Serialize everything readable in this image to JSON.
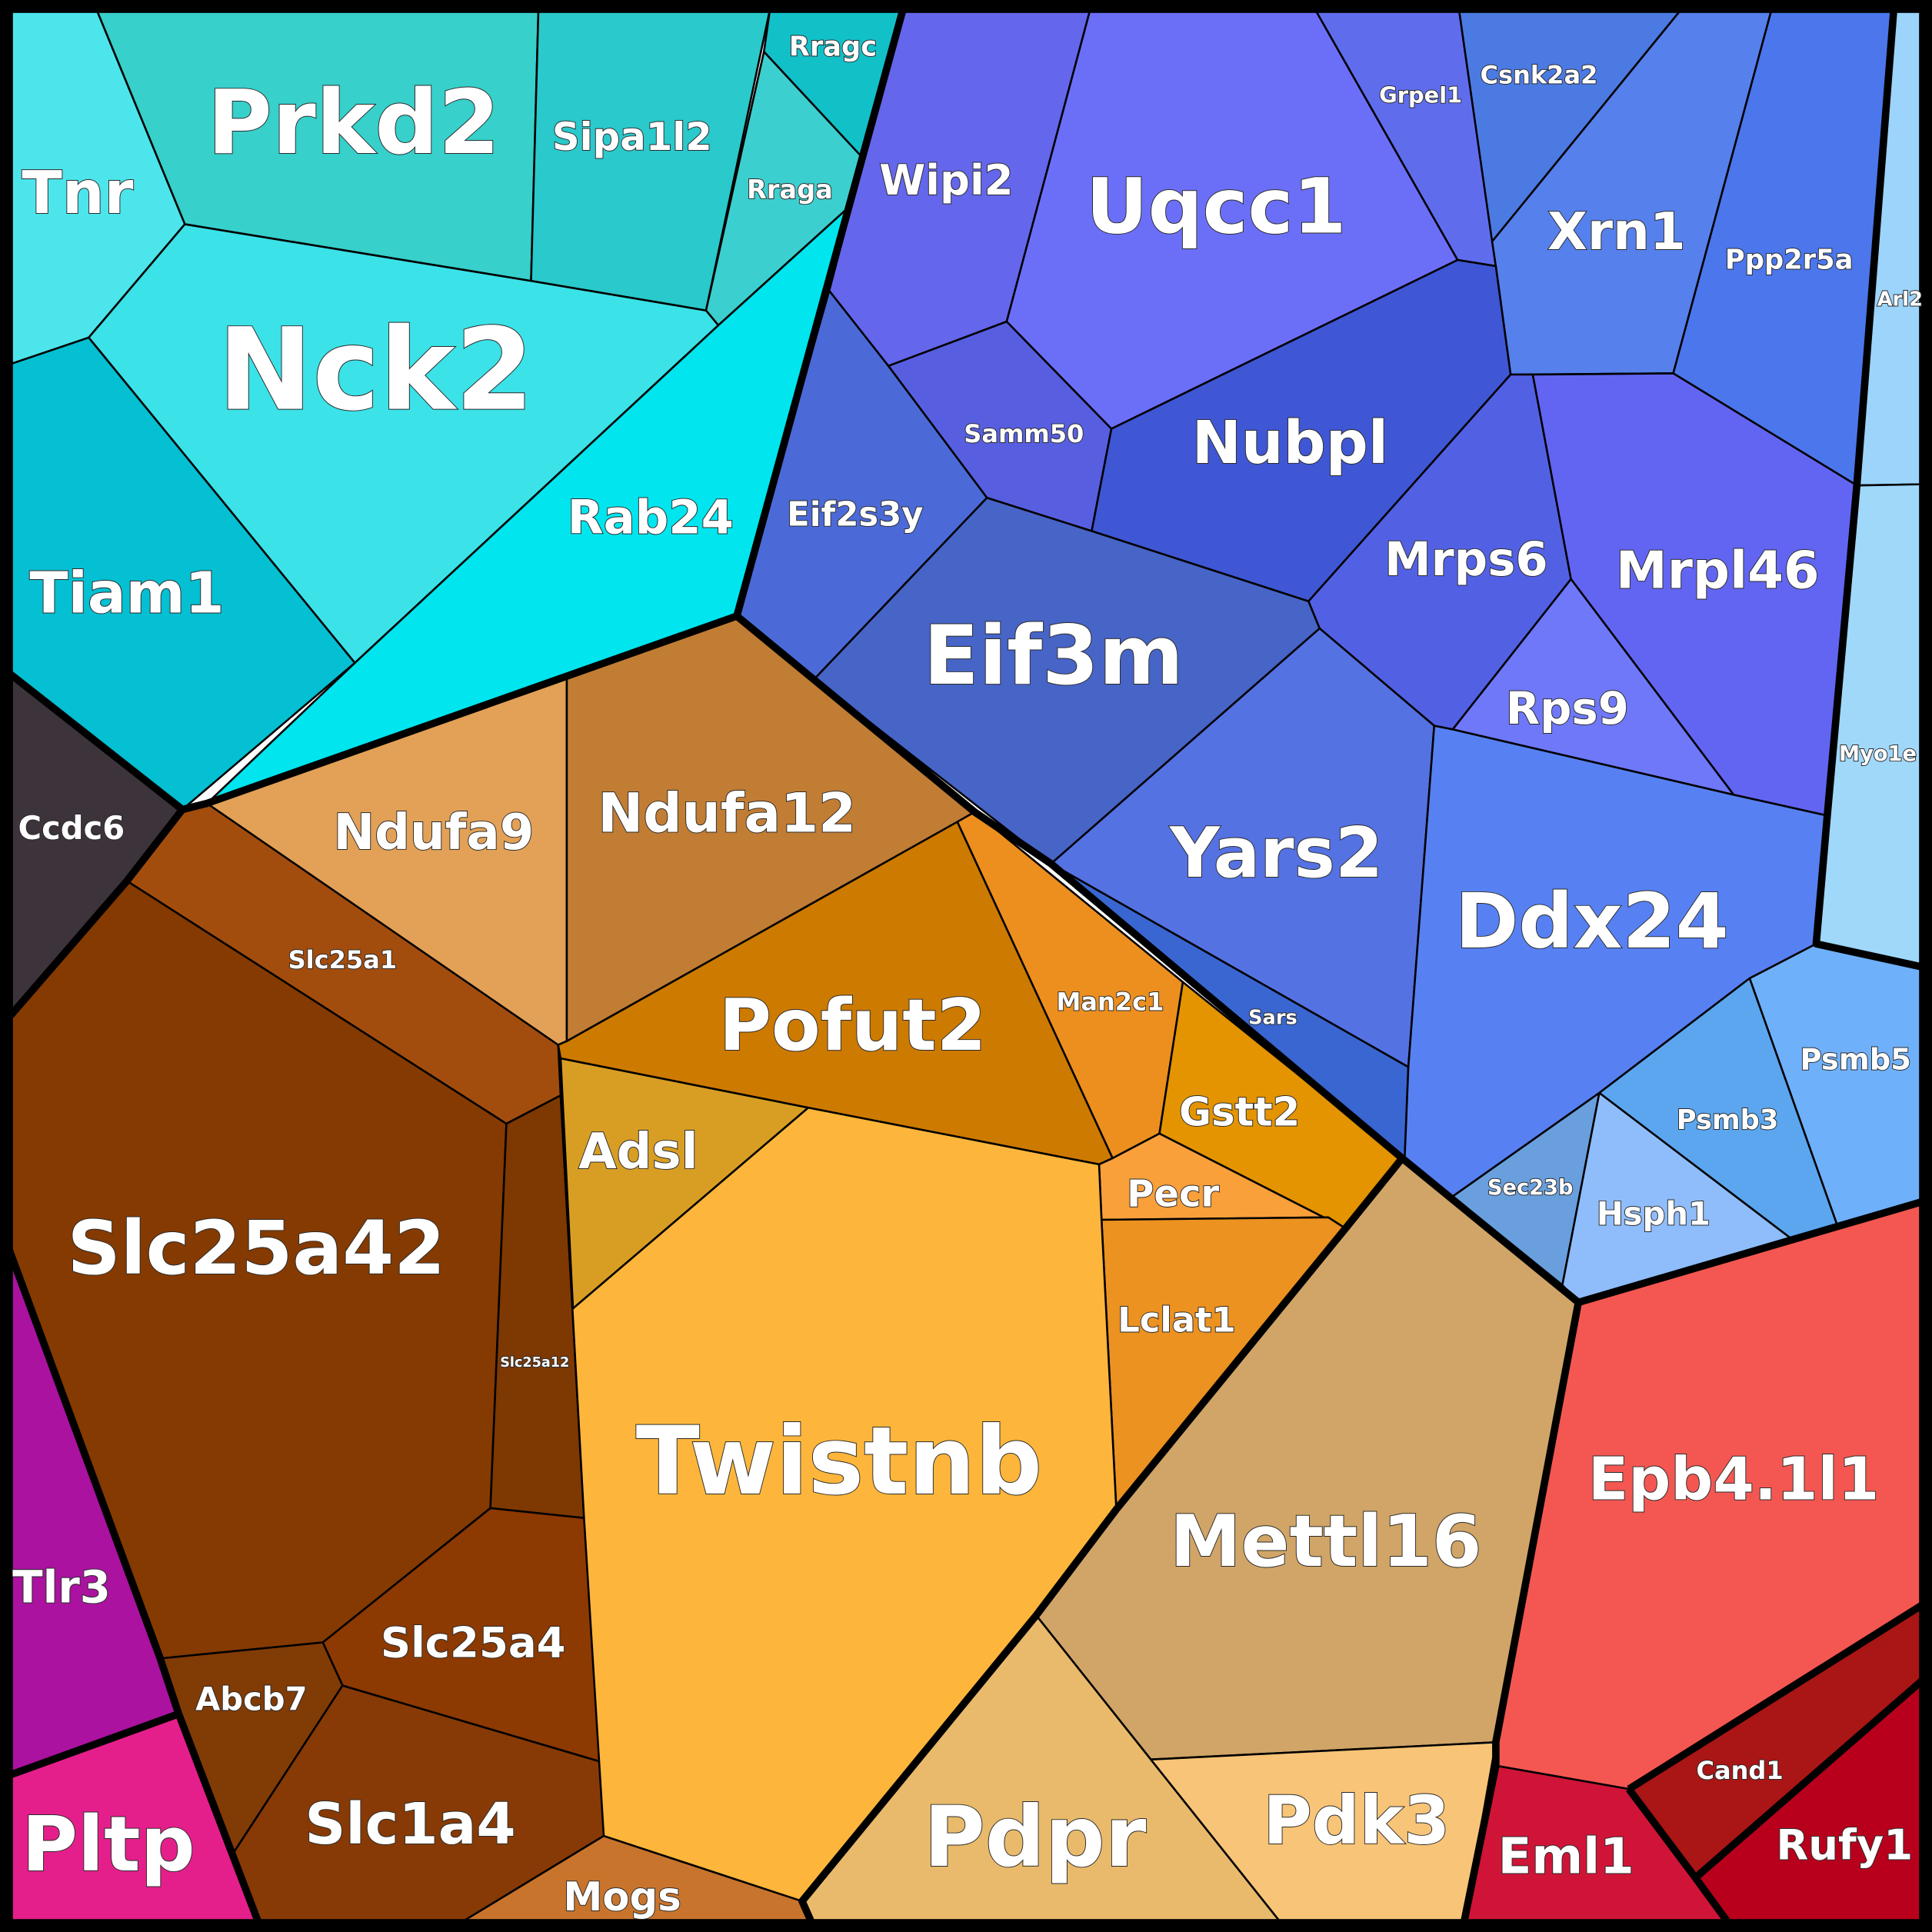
{
  "chart_data": {
    "type": "voronoi-treemap",
    "cells": [
      {
        "label": "Prkd2",
        "color": "#37d0cb"
      },
      {
        "label": "Sipa1l2",
        "color": "#2ac9cb"
      },
      {
        "label": "Rragc",
        "color": "#12c0c8"
      },
      {
        "label": "Rraga",
        "color": "#3ccfd0"
      },
      {
        "label": "Tnr",
        "color": "#4de5ec"
      },
      {
        "label": "Nck2",
        "color": "#3be2e8"
      },
      {
        "label": "Tiam1",
        "color": "#05bfd2"
      },
      {
        "label": "Rab24",
        "color": "#00e5ee"
      },
      {
        "label": "Ccdc6",
        "color": "#3c333b"
      },
      {
        "label": "Wipi2",
        "color": "#6466ec"
      },
      {
        "label": "Uqcc1",
        "color": "#6b6ff8"
      },
      {
        "label": "Grpel1",
        "color": "#5f6ded"
      },
      {
        "label": "Csnk2a2",
        "color": "#4c7ae3"
      },
      {
        "label": "Xrn1",
        "color": "#5680ec"
      },
      {
        "label": "Ppp2r5a",
        "color": "#4b76ec"
      },
      {
        "label": "Samm50",
        "color": "#575fe0"
      },
      {
        "label": "Nubpl",
        "color": "#3f57d4"
      },
      {
        "label": "Eif2s3y",
        "color": "#4b6ad8"
      },
      {
        "label": "Eif3m",
        "color": "#4764c7"
      },
      {
        "label": "Mrps6",
        "color": "#5261e4"
      },
      {
        "label": "Mrpl46",
        "color": "#6265f2"
      },
      {
        "label": "Rps9",
        "color": "#6e78f9"
      },
      {
        "label": "Yars2",
        "color": "#5572e3"
      },
      {
        "label": "Sars",
        "color": "#3a66d2"
      },
      {
        "label": "Ddx24",
        "color": "#5781f2"
      },
      {
        "label": "Arl2",
        "color": "#9cd4fb"
      },
      {
        "label": "Myo1e",
        "color": "#a0d8fa"
      },
      {
        "label": "Psmb5",
        "color": "#6fb0fb"
      },
      {
        "label": "Psmb3",
        "color": "#5ba6ef"
      },
      {
        "label": "Sec23b",
        "color": "#699fdd"
      },
      {
        "label": "Hsph1",
        "color": "#8fbdfb"
      },
      {
        "label": "Ndufa9",
        "color": "#e2a157"
      },
      {
        "label": "Ndufa12",
        "color": "#c17d34"
      },
      {
        "label": "Slc25a1",
        "color": "#a24d0e"
      },
      {
        "label": "Slc25a42",
        "color": "#843a01"
      },
      {
        "label": "Slc25a12",
        "color": "#7e3802"
      },
      {
        "label": "Slc25a4",
        "color": "#8d3902"
      },
      {
        "label": "Abcb7",
        "color": "#813b05"
      },
      {
        "label": "Slc1a4",
        "color": "#873a05"
      },
      {
        "label": "Mogs",
        "color": "#c8742d"
      },
      {
        "label": "Pofut2",
        "color": "#cd7a01"
      },
      {
        "label": "Man2c1",
        "color": "#ec8f1f"
      },
      {
        "label": "Gstt2",
        "color": "#e39400"
      },
      {
        "label": "Adsl",
        "color": "#d89e24"
      },
      {
        "label": "Pecr",
        "color": "#f9a03b"
      },
      {
        "label": "Lclat1",
        "color": "#ec9220"
      },
      {
        "label": "Twistnb",
        "color": "#fdb63b"
      },
      {
        "label": "Mettl16",
        "color": "#d1a567"
      },
      {
        "label": "Pdpr",
        "color": "#e9ba6b"
      },
      {
        "label": "Pdk3",
        "color": "#f8c477"
      },
      {
        "label": "Epb4.1l1",
        "color": "#f45751"
      },
      {
        "label": "Cand1",
        "color": "#aa1515"
      },
      {
        "label": "Eml1",
        "color": "#d01438"
      },
      {
        "label": "Rufy1",
        "color": "#b8001c"
      },
      {
        "label": "Tlr3",
        "color": "#aa129f"
      },
      {
        "label": "Pltp",
        "color": "#e41f8b"
      }
    ]
  }
}
